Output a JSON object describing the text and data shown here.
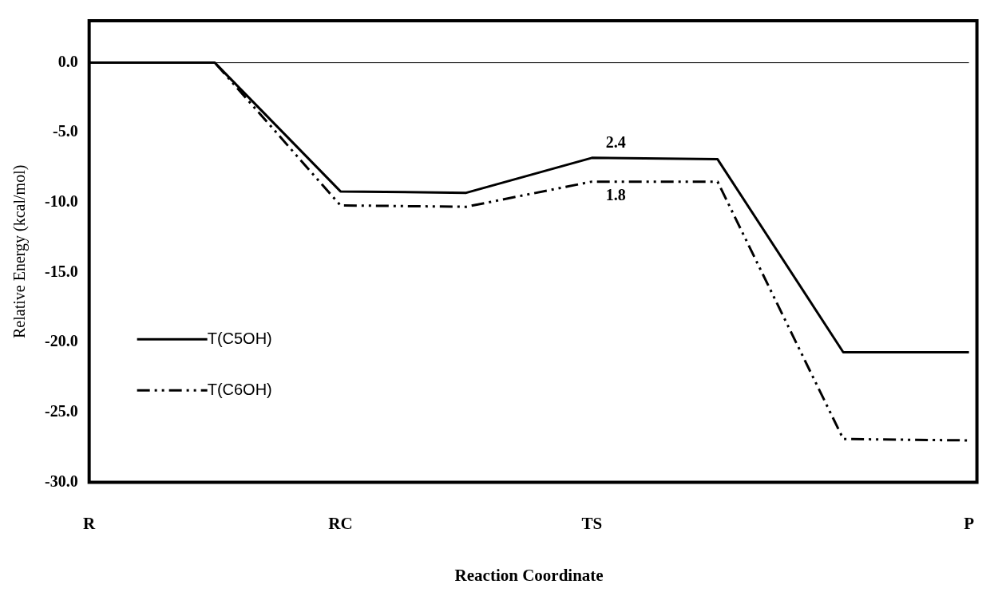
{
  "chart_data": {
    "type": "line",
    "xlabel": "Reaction Coordinate",
    "ylabel": "Relative Energy (kcal/mol)",
    "categories": [
      "R",
      null,
      "RC",
      null,
      "TS",
      null,
      null,
      "P"
    ],
    "series": [
      {
        "name": "T(C5OH)",
        "color": "#000000",
        "line_style": "solid",
        "values": [
          0,
          0,
          -9.2,
          -9.3,
          -6.8,
          -6.9,
          -20.7,
          -20.7
        ]
      },
      {
        "name": "T(C6OH)",
        "color": "#000000",
        "line_style": "dashed",
        "values": [
          0,
          0,
          -10.2,
          -10.3,
          -8.5,
          -8.5,
          -26.9,
          -27.0
        ]
      }
    ],
    "ylim": [
      -30,
      3
    ],
    "yticks": [
      {
        "value": -30,
        "label": "-30.0"
      },
      {
        "value": -25,
        "label": "-25.0"
      },
      {
        "value": -20,
        "label": "-20.0"
      },
      {
        "value": -15,
        "label": "-15.0"
      },
      {
        "value": -10,
        "label": "-10.0"
      },
      {
        "value": -5,
        "label": "-5.0"
      },
      {
        "value": 0,
        "label": "0.0"
      }
    ],
    "ref_lines": [
      {
        "axis": "y",
        "value": 0,
        "color": "#000000"
      }
    ],
    "annotations": [
      {
        "text": "2.4",
        "x": "TS",
        "y": -6.8
      },
      {
        "text": "1.8",
        "x": "TS",
        "y": -8.5
      }
    ],
    "grid": false,
    "legend": "left",
    "marker": "none"
  }
}
